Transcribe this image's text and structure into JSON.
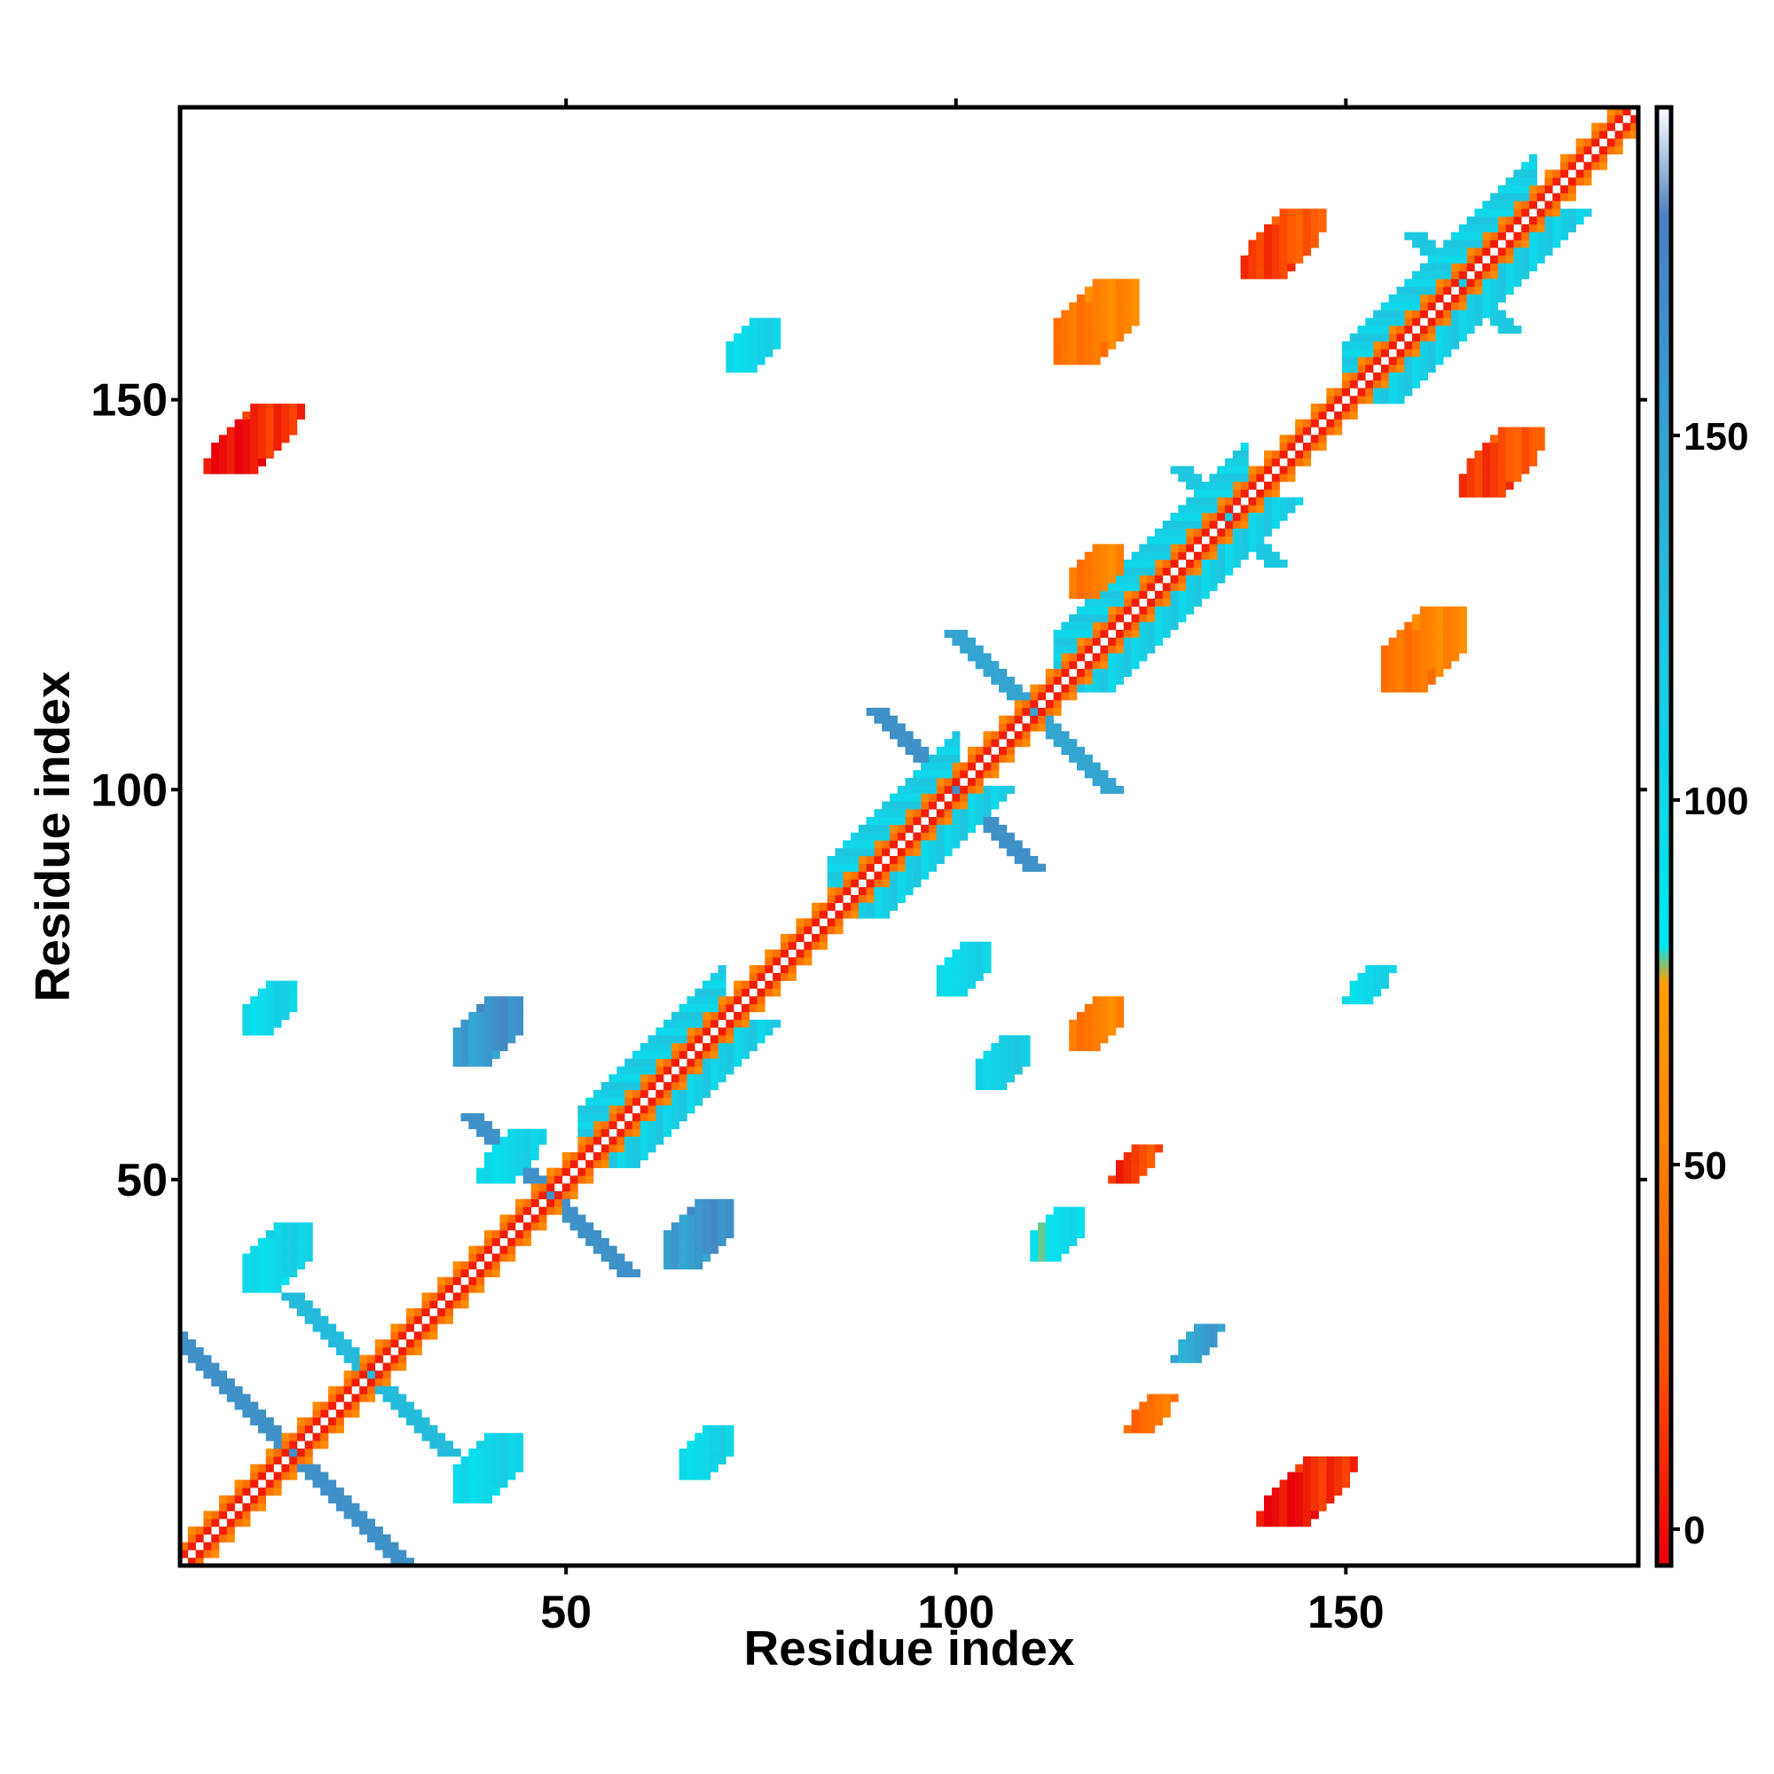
{
  "chart_data": {
    "type": "heatmap",
    "title": "",
    "xlabel": "Residue index",
    "ylabel": "Residue index",
    "xlim": [
      1,
      187
    ],
    "ylim": [
      1,
      187
    ],
    "x_ticks": [
      50,
      100,
      150
    ],
    "y_ticks": [
      50,
      100,
      150
    ],
    "grid": false,
    "colorbar": {
      "ticks": [
        0,
        50,
        100,
        150
      ],
      "range": [
        -5,
        195
      ],
      "stops": [
        {
          "value": -5,
          "color": "#e8000a"
        },
        {
          "value": 25,
          "color": "#ff5a00"
        },
        {
          "value": 75,
          "color": "#ffa000"
        },
        {
          "value": 80,
          "color": "#00e5f0"
        },
        {
          "value": 120,
          "color": "#1ec8e0"
        },
        {
          "value": 180,
          "color": "#4a7fc0"
        },
        {
          "value": 195,
          "color": "#ffffff"
        }
      ]
    },
    "diagonal": {
      "start": 1,
      "end": 187
    },
    "features": [
      {
        "kind": "band",
        "from": 52,
        "to": 70,
        "width": 4,
        "value": 110
      },
      {
        "kind": "band",
        "from": 84,
        "to": 100,
        "width": 4,
        "value": 110
      },
      {
        "kind": "band",
        "from": 113,
        "to": 137,
        "width": 4,
        "value": 110
      },
      {
        "kind": "band",
        "from": 150,
        "to": 174,
        "width": 4,
        "value": 110
      },
      {
        "kind": "cross",
        "center": [
          15,
          15
        ],
        "length": 17,
        "value": 165
      },
      {
        "kind": "cross",
        "center": [
          25,
          25
        ],
        "length": 10,
        "value": 130
      },
      {
        "kind": "cross",
        "center": [
          48,
          48
        ],
        "length": 10,
        "value": 165
      },
      {
        "kind": "cross",
        "center": [
          100,
          100
        ],
        "length": 10,
        "value": 165
      },
      {
        "kind": "cross",
        "center": [
          110,
          110
        ],
        "length": 10,
        "value": 150
      },
      {
        "kind": "cross",
        "center": [
          135,
          135
        ],
        "length": 6,
        "value": 120
      },
      {
        "kind": "cross",
        "center": [
          165,
          165
        ],
        "length": 6,
        "value": 120
      },
      {
        "kind": "blob",
        "center": [
          10,
          145
        ],
        "size": [
          6,
          4
        ],
        "value": 5
      },
      {
        "kind": "blob",
        "center": [
          145,
          10
        ],
        "size": [
          6,
          4
        ],
        "value": 5
      },
      {
        "kind": "blob",
        "center": [
          142,
          170
        ],
        "size": [
          5,
          4
        ],
        "value": 20
      },
      {
        "kind": "blob",
        "center": [
          170,
          142
        ],
        "size": [
          5,
          4
        ],
        "value": 20
      },
      {
        "kind": "blob",
        "center": [
          118,
          160
        ],
        "size": [
          5,
          5
        ],
        "value": 50
      },
      {
        "kind": "blob",
        "center": [
          160,
          118
        ],
        "size": [
          5,
          5
        ],
        "value": 50
      },
      {
        "kind": "blob",
        "center": [
          13,
          40
        ],
        "size": [
          4,
          4
        ],
        "value": 100
      },
      {
        "kind": "blob",
        "center": [
          40,
          13
        ],
        "size": [
          4,
          4
        ],
        "value": 100
      },
      {
        "kind": "blob",
        "center": [
          12,
          72
        ],
        "size": [
          3,
          3
        ],
        "value": 100
      },
      {
        "kind": "blob",
        "center": [
          40,
          69
        ],
        "size": [
          4,
          4
        ],
        "value": 160
      },
      {
        "kind": "blob",
        "center": [
          67,
          43
        ],
        "size": [
          4,
          4
        ],
        "value": 160
      },
      {
        "kind": "blob",
        "center": [
          68,
          15
        ],
        "size": [
          3,
          3
        ],
        "value": 100
      },
      {
        "kind": "blob",
        "center": [
          106,
          65
        ],
        "size": [
          3,
          3
        ],
        "value": 110
      },
      {
        "kind": "blob",
        "center": [
          101,
          77
        ],
        "size": [
          3,
          3
        ],
        "value": 100
      },
      {
        "kind": "blob",
        "center": [
          43,
          53
        ],
        "size": [
          4,
          3
        ],
        "value": 100
      },
      {
        "kind": "blob",
        "center": [
          74,
          157
        ],
        "size": [
          3,
          3
        ],
        "value": 100
      },
      {
        "kind": "blob",
        "center": [
          113,
          43
        ],
        "size": [
          3,
          3
        ],
        "value": 90
      },
      {
        "kind": "blob",
        "center": [
          118,
          128
        ],
        "size": [
          3,
          3
        ],
        "value": 50
      },
      {
        "kind": "blob",
        "center": [
          118,
          70
        ],
        "size": [
          3,
          3
        ],
        "value": 50
      },
      {
        "kind": "blob",
        "center": [
          153,
          75
        ],
        "size": [
          3,
          2
        ],
        "value": 100
      },
      {
        "kind": "blob",
        "center": [
          131,
          29
        ],
        "size": [
          3,
          2
        ],
        "value": 150
      },
      {
        "kind": "blob",
        "center": [
          125,
          20
        ],
        "size": [
          3,
          2
        ],
        "value": 40
      },
      {
        "kind": "blob",
        "center": [
          123,
          52
        ],
        "size": [
          3,
          2
        ],
        "value": 15
      }
    ]
  }
}
